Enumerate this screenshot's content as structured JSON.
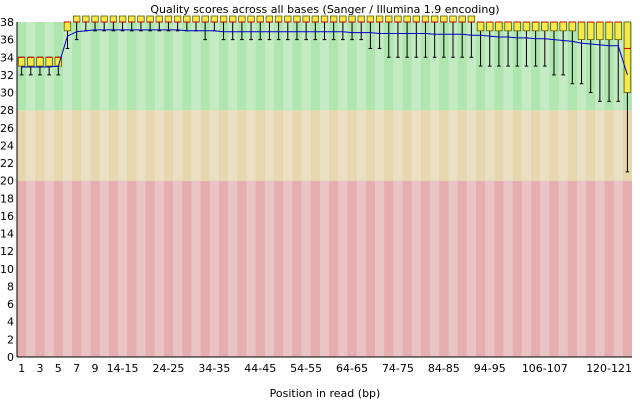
{
  "chart_data": {
    "type": "box",
    "title": "Quality scores across all bases (Sanger / Illumina 1.9 encoding)",
    "xlabel": "Position in read (bp)",
    "ylabel": "",
    "ylim": [
      0,
      38
    ],
    "yticks": [
      "0",
      "2",
      "4",
      "6",
      "8",
      "10",
      "12",
      "14",
      "16",
      "18",
      "20",
      "22",
      "24",
      "26",
      "28",
      "30",
      "32",
      "34",
      "36",
      "38"
    ],
    "categories": [
      "1",
      "2",
      "3",
      "4",
      "5",
      "6",
      "7",
      "8",
      "9",
      "10-11",
      "12-13",
      "14-15",
      "16-17",
      "18-19",
      "20-21",
      "22-23",
      "24-25",
      "26-27",
      "28-29",
      "30-31",
      "32-33",
      "34-35",
      "36-37",
      "38-39",
      "40-41",
      "42-43",
      "44-45",
      "46-47",
      "48-49",
      "50-51",
      "52-53",
      "54-55",
      "56-57",
      "58-59",
      "60-61",
      "62-63",
      "64-65",
      "66-67",
      "68-69",
      "70-71",
      "72-73",
      "74-75",
      "76-77",
      "78-79",
      "80-81",
      "82-83",
      "84-85",
      "86-87",
      "88-89",
      "90-91",
      "92-93",
      "94-95",
      "96-97",
      "98-99",
      "100-101",
      "102-103",
      "104-105",
      "106-107",
      "108-109",
      "110-111",
      "112-113",
      "114-115",
      "116-117",
      "118-119",
      "120-121",
      "122-123",
      "124-125"
    ],
    "visible_xtick_labels": [
      "1",
      "3",
      "5",
      "7",
      "9",
      "14-15",
      "24-25",
      "34-35",
      "44-45",
      "54-55",
      "64-65",
      "74-75",
      "84-85",
      "94-95",
      "106-107",
      "120-121"
    ],
    "quality_bands": [
      {
        "from": 0,
        "to": 20,
        "color": "#e6afaf",
        "alt_color": "#e8c4c4"
      },
      {
        "from": 20,
        "to": 28,
        "color": "#e6d7af",
        "alt_color": "#ebe0c4"
      },
      {
        "from": 28,
        "to": 38,
        "color": "#afe6af",
        "alt_color": "#c4ebc4"
      }
    ],
    "box_color": "#f5e84a",
    "box_edge_color": "#5a5a00",
    "median_color": "#c80000",
    "mean_line_color": "#0000c8",
    "whisker_color": "#000000",
    "series": [
      {
        "name": "mean",
        "values": [
          32.9,
          32.9,
          32.9,
          32.9,
          33.0,
          36.4,
          36.9,
          37.0,
          37.1,
          37.1,
          37.1,
          37.1,
          37.1,
          37.1,
          37.1,
          37.1,
          37.1,
          37.1,
          37.0,
          37.0,
          37.0,
          37.0,
          36.9,
          36.9,
          36.9,
          36.9,
          36.9,
          36.9,
          36.9,
          36.9,
          36.9,
          36.9,
          36.9,
          36.9,
          36.9,
          36.9,
          36.8,
          36.8,
          36.8,
          36.7,
          36.7,
          36.7,
          36.7,
          36.7,
          36.7,
          36.6,
          36.6,
          36.6,
          36.6,
          36.5,
          36.5,
          36.4,
          36.3,
          36.3,
          36.2,
          36.2,
          36.1,
          36.1,
          36.0,
          35.9,
          35.8,
          35.6,
          35.5,
          35.4,
          35.3,
          35.3,
          32.0
        ]
      },
      {
        "name": "median",
        "values": [
          34,
          34,
          34,
          34,
          34,
          38,
          38,
          38,
          38,
          38,
          38,
          38,
          38,
          38,
          38,
          38,
          38,
          38,
          38,
          38,
          38,
          38,
          38,
          38,
          38,
          38,
          38,
          38,
          38,
          38,
          38,
          38,
          38,
          38,
          38,
          38,
          38,
          38,
          38,
          38,
          38,
          38,
          38,
          38,
          38,
          38,
          38,
          38,
          38,
          38,
          38,
          38,
          38,
          38,
          38,
          38,
          38,
          38,
          38,
          38,
          38,
          38,
          38,
          38,
          38,
          38,
          35
        ]
      },
      {
        "name": "q1",
        "values": [
          33,
          33,
          33,
          33,
          33,
          37,
          38,
          38,
          38,
          38,
          38,
          38,
          38,
          38,
          38,
          38,
          38,
          38,
          38,
          38,
          38,
          38,
          38,
          38,
          38,
          38,
          38,
          38,
          38,
          38,
          38,
          38,
          38,
          38,
          38,
          38,
          38,
          38,
          38,
          38,
          38,
          38,
          38,
          38,
          38,
          38,
          38,
          38,
          38,
          38,
          37,
          37,
          37,
          37,
          37,
          37,
          37,
          37,
          37,
          37,
          37,
          36,
          36,
          36,
          36,
          36,
          30
        ]
      },
      {
        "name": "q3",
        "values": [
          34,
          34,
          34,
          34,
          34,
          38,
          38,
          38,
          38,
          38,
          38,
          38,
          38,
          38,
          38,
          38,
          38,
          38,
          38,
          38,
          38,
          38,
          38,
          38,
          38,
          38,
          38,
          38,
          38,
          38,
          38,
          38,
          38,
          38,
          38,
          38,
          38,
          38,
          38,
          38,
          38,
          38,
          38,
          38,
          38,
          38,
          38,
          38,
          38,
          38,
          38,
          38,
          38,
          38,
          38,
          38,
          38,
          38,
          38,
          38,
          38,
          38,
          38,
          38,
          38,
          38,
          38
        ]
      },
      {
        "name": "p10",
        "values": [
          32,
          32,
          32,
          32,
          32,
          35,
          36,
          37,
          37,
          37,
          37,
          37,
          37,
          37,
          37,
          37,
          37,
          37,
          37,
          37,
          36,
          37,
          36,
          36,
          36,
          36,
          36,
          36,
          36,
          36,
          36,
          36,
          36,
          36,
          36,
          36,
          36,
          36,
          35,
          35,
          34,
          34,
          34,
          34,
          34,
          34,
          34,
          34,
          34,
          34,
          33,
          33,
          33,
          33,
          33,
          33,
          33,
          33,
          32,
          32,
          31,
          31,
          30,
          29,
          29,
          29,
          21
        ]
      },
      {
        "name": "p90",
        "values": [
          34,
          34,
          34,
          34,
          34,
          38,
          38,
          38,
          38,
          38,
          38,
          38,
          38,
          38,
          38,
          38,
          38,
          38,
          38,
          38,
          38,
          38,
          38,
          38,
          38,
          38,
          38,
          38,
          38,
          38,
          38,
          38,
          38,
          38,
          38,
          38,
          38,
          38,
          38,
          38,
          38,
          38,
          38,
          38,
          38,
          38,
          38,
          38,
          38,
          38,
          38,
          38,
          38,
          38,
          38,
          38,
          38,
          38,
          38,
          38,
          38,
          38,
          38,
          38,
          38,
          38,
          38
        ]
      }
    ]
  }
}
